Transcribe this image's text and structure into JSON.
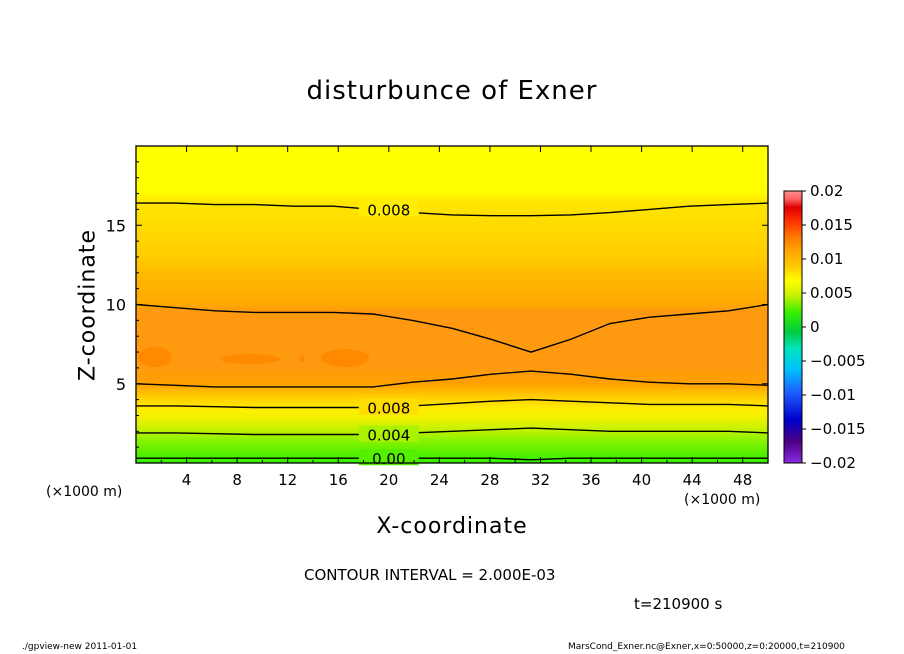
{
  "chart_data": {
    "type": "heatmap",
    "title": "disturbunce of Exner",
    "xlabel": "X-coordinate",
    "ylabel": "Z-coordinate",
    "x_unit": "(×1000 m)",
    "xlim": [
      0,
      50
    ],
    "ylim": [
      0,
      20
    ],
    "x_ticks": [
      "4",
      "8",
      "12",
      "16",
      "20",
      "24",
      "28",
      "32",
      "36",
      "40",
      "44",
      "48"
    ],
    "y_ticks": [
      "5",
      "10",
      "15"
    ],
    "colorbar": {
      "range": [
        -0.02,
        0.02
      ],
      "tick_labels": [
        "0.02",
        "0.015",
        "0.01",
        "0.005",
        "0",
        "-0.005",
        "-0.01",
        "-0.015",
        "-0.02"
      ],
      "colors": [
        "#8a2be2",
        "#4b0082",
        "#0000cd",
        "#1e5fff",
        "#00bfff",
        "#00e5c0",
        "#00cc44",
        "#33ee00",
        "#ccf200",
        "#ffff00",
        "#ffcc00",
        "#ffa500",
        "#ff7a00",
        "#ff3000",
        "#e00000",
        "#ff6060",
        "#ff9090"
      ]
    },
    "contours": [
      {
        "label": "0.008",
        "z": [
          16.4,
          16.4,
          16.3,
          16.3,
          16.2,
          16.2,
          16.0,
          15.8,
          15.65,
          15.6,
          15.6,
          15.65,
          15.8,
          16.0,
          16.2,
          16.3,
          16.4
        ]
      },
      {
        "label": "",
        "z": [
          10.0,
          9.8,
          9.6,
          9.5,
          9.5,
          9.5,
          9.4,
          9.0,
          8.5,
          7.8,
          7.0,
          7.8,
          8.8,
          9.2,
          9.4,
          9.6,
          10.0
        ]
      },
      {
        "label": "",
        "z": [
          5.0,
          4.9,
          4.8,
          4.8,
          4.8,
          4.8,
          4.8,
          5.1,
          5.3,
          5.6,
          5.8,
          5.6,
          5.3,
          5.1,
          5.0,
          5.0,
          4.9
        ]
      },
      {
        "label": "0.008",
        "z": [
          3.6,
          3.6,
          3.55,
          3.5,
          3.5,
          3.5,
          3.5,
          3.6,
          3.75,
          3.9,
          4.0,
          3.9,
          3.8,
          3.7,
          3.7,
          3.7,
          3.6
        ]
      },
      {
        "label": "0.004",
        "z": [
          1.9,
          1.9,
          1.85,
          1.8,
          1.8,
          1.8,
          1.8,
          1.9,
          2.0,
          2.1,
          2.2,
          2.1,
          2.0,
          2.0,
          2.0,
          2.0,
          1.9
        ]
      },
      {
        "label": "0.00",
        "z": [
          0.3,
          0.3,
          0.3,
          0.3,
          0.3,
          0.3,
          0.3,
          0.3,
          0.3,
          0.3,
          0.2,
          0.3,
          0.3,
          0.3,
          0.3,
          0.3,
          0.3
        ]
      }
    ],
    "contour_interval": "CONTOUR INTERVAL = 2.000E-03",
    "time_label": "t=210900  s"
  },
  "footer": {
    "left": "./gpview-new   2011-01-01",
    "right": "MarsCond_Exner.nc@Exner,x=0:50000,z=0:20000,t=210900"
  }
}
